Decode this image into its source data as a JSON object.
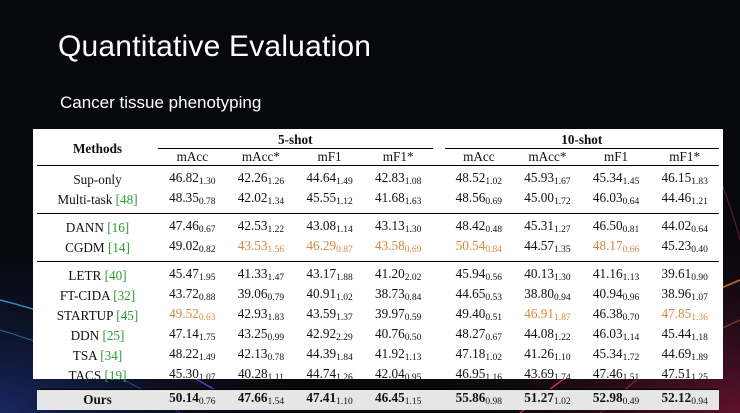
{
  "slide": {
    "title": "Quantitative Evaluation",
    "subtitle": "Cancer tissue phenotyping"
  },
  "colors": {
    "background": "#07080c",
    "highlight_orange": "#d6893a",
    "reference_green": "#2f9a35",
    "ours_row_bg": "#e6e6e6"
  },
  "table": {
    "methods_header": "Methods",
    "groups": [
      "5-shot",
      "10-shot"
    ],
    "metrics": [
      "mAcc",
      "mAcc*",
      "mF1",
      "mF1*"
    ],
    "sections": [
      [
        {
          "name": "Sup-only",
          "ref": "",
          "cells": [
            [
              "46.82",
              "1.30"
            ],
            [
              "42.26",
              "1.26"
            ],
            [
              "44.64",
              "1.49"
            ],
            [
              "42.83",
              "1.08"
            ],
            [
              "48.52",
              "1.02"
            ],
            [
              "45.93",
              "1.67"
            ],
            [
              "45.34",
              "1.45"
            ],
            [
              "46.15",
              "1.83"
            ]
          ],
          "orange": [
            false,
            false,
            false,
            false,
            false,
            false,
            false,
            false
          ]
        },
        {
          "name": "Multi-task ",
          "ref": "[48]",
          "cells": [
            [
              "48.35",
              "0.78"
            ],
            [
              "42.02",
              "1.34"
            ],
            [
              "45.55",
              "1.12"
            ],
            [
              "41.68",
              "1.63"
            ],
            [
              "48.56",
              "0.69"
            ],
            [
              "45.00",
              "1.72"
            ],
            [
              "46.03",
              "0.64"
            ],
            [
              "44.46",
              "1.21"
            ]
          ],
          "orange": [
            false,
            false,
            false,
            false,
            false,
            false,
            false,
            false
          ]
        }
      ],
      [
        {
          "name": "DANN ",
          "ref": "[16]",
          "cells": [
            [
              "47.46",
              "0.67"
            ],
            [
              "42.53",
              "1.22"
            ],
            [
              "43.08",
              "1.14"
            ],
            [
              "43.13",
              "1.30"
            ],
            [
              "48.42",
              "0.48"
            ],
            [
              "45.31",
              "1.27"
            ],
            [
              "46.50",
              "0.81"
            ],
            [
              "44.02",
              "0.64"
            ]
          ],
          "orange": [
            false,
            false,
            false,
            false,
            false,
            false,
            false,
            false
          ]
        },
        {
          "name": "CGDM ",
          "ref": "[14]",
          "cells": [
            [
              "49.02",
              "0.82"
            ],
            [
              "43.53",
              "1.56"
            ],
            [
              "46.29",
              "0.87"
            ],
            [
              "43.58",
              "0.69"
            ],
            [
              "50.54",
              "0.84"
            ],
            [
              "44.57",
              "1.35"
            ],
            [
              "48.17",
              "0.66"
            ],
            [
              "45.23",
              "0.40"
            ]
          ],
          "orange": [
            false,
            true,
            true,
            true,
            true,
            false,
            true,
            false
          ]
        }
      ],
      [
        {
          "name": "LETR ",
          "ref": "[40]",
          "cells": [
            [
              "45.47",
              "1.95"
            ],
            [
              "41.33",
              "1.47"
            ],
            [
              "43.17",
              "1.88"
            ],
            [
              "41.20",
              "2.02"
            ],
            [
              "45.94",
              "0.56"
            ],
            [
              "40.13",
              "1.30"
            ],
            [
              "41.16",
              "1.13"
            ],
            [
              "39.61",
              "0.90"
            ]
          ],
          "orange": [
            false,
            false,
            false,
            false,
            false,
            false,
            false,
            false
          ]
        },
        {
          "name": "FT-CIDA ",
          "ref": "[32]",
          "cells": [
            [
              "43.72",
              "0.88"
            ],
            [
              "39.06",
              "0.79"
            ],
            [
              "40.91",
              "1.02"
            ],
            [
              "38.73",
              "0.84"
            ],
            [
              "44.65",
              "0.53"
            ],
            [
              "38.80",
              "0.94"
            ],
            [
              "40.94",
              "0.96"
            ],
            [
              "38.96",
              "1.07"
            ]
          ],
          "orange": [
            false,
            false,
            false,
            false,
            false,
            false,
            false,
            false
          ]
        },
        {
          "name": "STARTUP ",
          "ref": "[45]",
          "cells": [
            [
              "49.52",
              "0.63"
            ],
            [
              "42.93",
              "1.83"
            ],
            [
              "43.59",
              "1.37"
            ],
            [
              "39.97",
              "0.59"
            ],
            [
              "49.40",
              "0.51"
            ],
            [
              "46.91",
              "1.87"
            ],
            [
              "46.38",
              "0.70"
            ],
            [
              "47.85",
              "1.36"
            ]
          ],
          "orange": [
            true,
            false,
            false,
            false,
            false,
            true,
            false,
            true
          ]
        },
        {
          "name": "DDN ",
          "ref": "[25]",
          "cells": [
            [
              "47.14",
              "1.75"
            ],
            [
              "43.25",
              "0.99"
            ],
            [
              "42.92",
              "2.29"
            ],
            [
              "40.76",
              "0.50"
            ],
            [
              "48.27",
              "0.67"
            ],
            [
              "44.08",
              "1.22"
            ],
            [
              "46.03",
              "1.14"
            ],
            [
              "45.44",
              "1.18"
            ]
          ],
          "orange": [
            false,
            false,
            false,
            false,
            false,
            false,
            false,
            false
          ]
        },
        {
          "name": "TSA ",
          "ref": "[34]",
          "cells": [
            [
              "48.22",
              "1.49"
            ],
            [
              "42.13",
              "0.78"
            ],
            [
              "44.39",
              "1.84"
            ],
            [
              "41.92",
              "1.13"
            ],
            [
              "47.18",
              "1.02"
            ],
            [
              "41.26",
              "1.10"
            ],
            [
              "45.34",
              "1.72"
            ],
            [
              "44.69",
              "1.89"
            ]
          ],
          "orange": [
            false,
            false,
            false,
            false,
            false,
            false,
            false,
            false
          ]
        },
        {
          "name": "TACS ",
          "ref": "[19]",
          "cells": [
            [
              "45.30",
              "1.07"
            ],
            [
              "40.28",
              "1.11"
            ],
            [
              "44.74",
              "1.26"
            ],
            [
              "42.04",
              "0.95"
            ],
            [
              "46.95",
              "1.16"
            ],
            [
              "43.69",
              "1.74"
            ],
            [
              "47.46",
              "1.51"
            ],
            [
              "47.51",
              "1.25"
            ]
          ],
          "orange": [
            false,
            false,
            false,
            false,
            false,
            false,
            false,
            false
          ]
        }
      ]
    ],
    "ours": {
      "name": "Ours",
      "cells": [
        [
          "50.14",
          "0.76"
        ],
        [
          "47.66",
          "1.54"
        ],
        [
          "47.41",
          "1.10"
        ],
        [
          "46.45",
          "1.15"
        ],
        [
          "55.86",
          "0.98"
        ],
        [
          "51.27",
          "1.02"
        ],
        [
          "52.98",
          "0.49"
        ],
        [
          "52.12",
          "0.94"
        ]
      ]
    }
  }
}
